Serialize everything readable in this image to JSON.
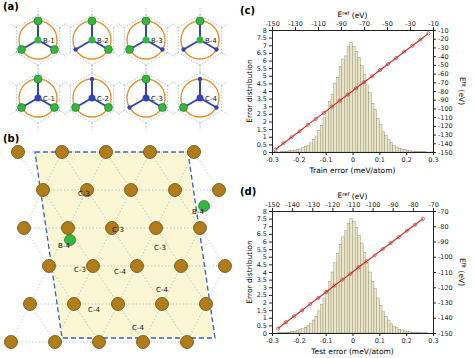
{
  "panels": {
    "a": {
      "label": "(a)",
      "cells": [
        "B-1",
        "B-2",
        "B-3",
        "B-4",
        "C-1",
        "C-2",
        "C-3",
        "C-4"
      ]
    },
    "b": {
      "label": "(b)",
      "site_labels": [
        "C-3",
        "B-4",
        "B-4",
        "C-3",
        "C-3",
        "C-4",
        "C-3",
        "C-4",
        "C-4",
        "C-4"
      ]
    },
    "c": {
      "label": "(c)"
    },
    "d": {
      "label": "(d)"
    }
  },
  "chart_data": [
    {
      "type": "histogram",
      "x_label": "Train error (meV/atom)",
      "y_label": "Error distribution",
      "color": "#ece6c8",
      "xlim": [
        -0.3,
        0.3
      ],
      "xticks": [
        -0.3,
        -0.2,
        -0.1,
        0,
        0.1,
        0.2,
        0.3
      ],
      "ylim": [
        0,
        8
      ],
      "yticks": [
        0,
        0.5,
        1,
        1.5,
        2,
        2.5,
        3,
        3.5,
        4,
        4.5,
        5,
        5.5,
        6,
        6.5,
        7,
        7.5,
        8
      ],
      "bins": [
        -0.3,
        -0.29,
        -0.28,
        -0.27,
        -0.26,
        -0.25,
        -0.24,
        -0.23,
        -0.22,
        -0.21,
        -0.2,
        -0.19,
        -0.18,
        -0.17,
        -0.16,
        -0.15,
        -0.14,
        -0.13,
        -0.12,
        -0.11,
        -0.1,
        -0.09,
        -0.08,
        -0.07,
        -0.06,
        -0.05,
        -0.04,
        -0.03,
        -0.02,
        -0.01,
        0,
        0.01,
        0.02,
        0.03,
        0.04,
        0.05,
        0.06,
        0.07,
        0.08,
        0.09,
        0.1,
        0.11,
        0.12,
        0.13,
        0.14,
        0.15,
        0.16,
        0.17,
        0.18,
        0.19,
        0.2,
        0.21,
        0.22,
        0.23,
        0.24,
        0.25,
        0.26,
        0.27,
        0.28,
        0.29,
        0.3
      ],
      "counts": [
        0,
        0.02,
        0,
        0.03,
        0.05,
        0.04,
        0.08,
        0.1,
        0.12,
        0.18,
        0.2,
        0.28,
        0.35,
        0.45,
        0.6,
        0.82,
        1.05,
        1.4,
        1.75,
        2.25,
        2.7,
        3.3,
        3.8,
        4.5,
        4.9,
        5.6,
        6.1,
        6.3,
        6.9,
        7.2,
        6.9,
        6.6,
        6.2,
        5.7,
        5.1,
        4.4,
        3.9,
        3.2,
        2.8,
        2.2,
        1.8,
        1.35,
        1.1,
        0.8,
        0.62,
        0.45,
        0.33,
        0.25,
        0.2,
        0.15,
        0.1,
        0.08,
        0.06,
        0.05,
        0.03,
        0.02,
        0.03,
        0.01,
        0,
        0.01
      ]
    },
    {
      "type": "line",
      "marker": "circle",
      "color": "#c8322b",
      "x_label": "Eref (eV)",
      "y_label": "Efit (eV)",
      "xlim": [
        -150,
        -10
      ],
      "xticks": [
        -150,
        -130,
        -110,
        -90,
        -70,
        -50,
        -30,
        -10
      ],
      "ylim": [
        -150,
        -10
      ],
      "yticks": [
        -150,
        -140,
        -130,
        -120,
        -110,
        -100,
        -90,
        -80,
        -70,
        -60,
        -50,
        -40,
        -30,
        -20,
        -10
      ],
      "x": [
        -147,
        -140,
        -133,
        -126,
        -119,
        -112,
        -105,
        -98,
        -91,
        -84,
        -77,
        -70,
        -63,
        -56,
        -49,
        -42,
        -35,
        -28,
        -21,
        -14
      ],
      "values": [
        -147.1,
        -139.9,
        -133.0,
        -126.1,
        -118.9,
        -112.0,
        -105.1,
        -97.9,
        -91.0,
        -84.1,
        -76.9,
        -70.0,
        -63.1,
        -55.9,
        -49.0,
        -42.1,
        -34.9,
        -28.0,
        -21.1,
        -13.9
      ]
    },
    {
      "type": "histogram",
      "x_label": "Test error (meV/atom)",
      "y_label": "Error distribution",
      "color": "#ece6c8",
      "xlim": [
        -0.3,
        0.3
      ],
      "xticks": [
        -0.3,
        -0.2,
        -0.1,
        0,
        0.1,
        0.2,
        0.3
      ],
      "ylim": [
        0,
        8
      ],
      "yticks": [
        0,
        0.5,
        1,
        1.5,
        2,
        2.5,
        3,
        3.5,
        4,
        4.5,
        5,
        5.5,
        6,
        6.5,
        7,
        7.5,
        8
      ],
      "bins": [
        -0.3,
        -0.29,
        -0.28,
        -0.27,
        -0.26,
        -0.25,
        -0.24,
        -0.23,
        -0.22,
        -0.21,
        -0.2,
        -0.19,
        -0.18,
        -0.17,
        -0.16,
        -0.15,
        -0.14,
        -0.13,
        -0.12,
        -0.11,
        -0.1,
        -0.09,
        -0.08,
        -0.07,
        -0.06,
        -0.05,
        -0.04,
        -0.03,
        -0.02,
        -0.01,
        0,
        0.01,
        0.02,
        0.03,
        0.04,
        0.05,
        0.06,
        0.07,
        0.08,
        0.09,
        0.1,
        0.11,
        0.12,
        0.13,
        0.14,
        0.15,
        0.16,
        0.17,
        0.18,
        0.19,
        0.2,
        0.21,
        0.22,
        0.23,
        0.24,
        0.25,
        0.26,
        0.27,
        0.28,
        0.29,
        0.3
      ],
      "counts": [
        0,
        0,
        0.03,
        0.02,
        0.05,
        0.06,
        0.05,
        0.1,
        0.12,
        0.15,
        0.22,
        0.28,
        0.38,
        0.5,
        0.65,
        0.85,
        1.1,
        1.45,
        1.85,
        2.3,
        2.8,
        3.4,
        4.0,
        4.6,
        5.2,
        5.8,
        6.3,
        6.7,
        7.2,
        7.5,
        7.3,
        6.9,
        6.4,
        5.9,
        5.3,
        4.6,
        4.0,
        3.4,
        2.9,
        2.3,
        1.8,
        1.4,
        1.1,
        0.85,
        0.6,
        0.45,
        0.35,
        0.25,
        0.2,
        0.14,
        0.1,
        0.07,
        0.05,
        0.06,
        0.03,
        0.02,
        0.01,
        0.02,
        0,
        0
      ]
    },
    {
      "type": "line",
      "marker": "circle",
      "color": "#c8322b",
      "x_label": "Eref (eV)",
      "y_label": "Efit (eV)",
      "xlim": [
        -150,
        -70
      ],
      "xticks": [
        -150,
        -140,
        -130,
        -120,
        -110,
        -100,
        -90,
        -80,
        -70
      ],
      "ylim": [
        -150,
        -70
      ],
      "yticks": [
        -150,
        -140,
        -130,
        -120,
        -110,
        -100,
        -90,
        -80,
        -70
      ],
      "x": [
        -147,
        -143,
        -139,
        -135,
        -131,
        -127,
        -123,
        -119,
        -115,
        -111,
        -107,
        -103,
        -99,
        -95,
        -91,
        -87,
        -83,
        -79,
        -75
      ],
      "values": [
        -147.1,
        -142.9,
        -139.0,
        -135.1,
        -130.9,
        -127.0,
        -123.1,
        -118.9,
        -115.0,
        -111.1,
        -106.9,
        -103.0,
        -99.1,
        -94.9,
        -91.0,
        -87.1,
        -82.9,
        -79.0,
        -75.1
      ]
    }
  ]
}
